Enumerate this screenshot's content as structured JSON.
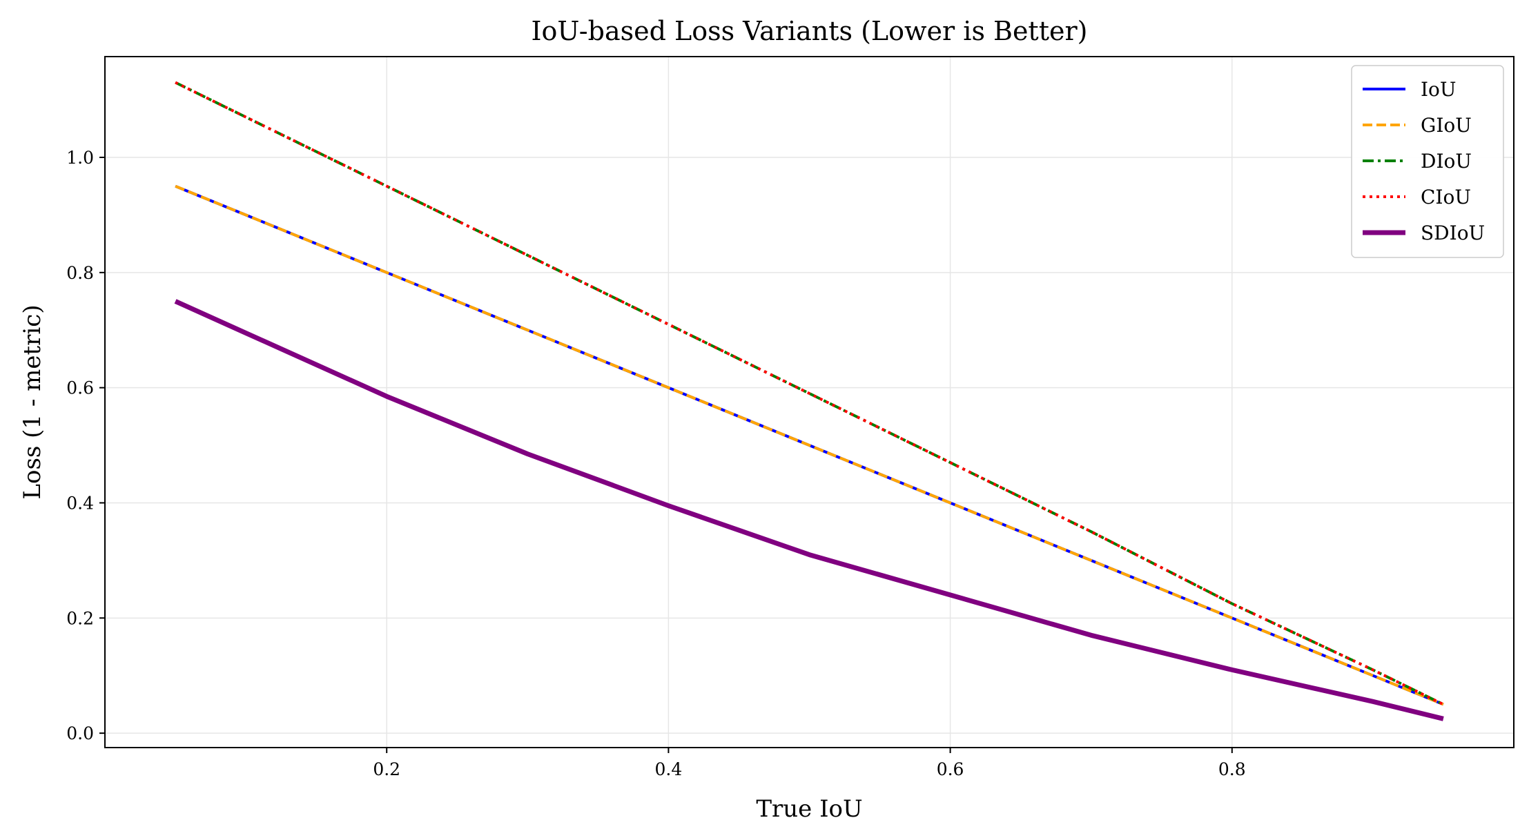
{
  "chart_data": {
    "type": "line",
    "title": "IoU-based Loss Variants (Lower is Better)",
    "xlabel": "True IoU",
    "ylabel": "Loss (1 - metric)",
    "xlim": [
      0.0,
      1.0
    ],
    "ylim": [
      -0.025,
      1.175
    ],
    "xticks": [
      0.2,
      0.4,
      0.6,
      0.8
    ],
    "yticks": [
      0.0,
      0.2,
      0.4,
      0.6,
      0.8,
      1.0
    ],
    "xtick_labels": [
      "0.2",
      "0.4",
      "0.6",
      "0.8"
    ],
    "ytick_labels": [
      "0.0",
      "0.2",
      "0.4",
      "0.6",
      "0.8",
      "1.0"
    ],
    "grid": true,
    "legend_position": "top-right",
    "x": [
      0.05,
      0.1,
      0.2,
      0.3,
      0.4,
      0.5,
      0.6,
      0.7,
      0.8,
      0.9,
      0.95
    ],
    "series": [
      {
        "name": "IoU",
        "color": "#0000ff",
        "style": "solid",
        "values": [
          0.95,
          0.9,
          0.8,
          0.7,
          0.6,
          0.5,
          0.4,
          0.3,
          0.2,
          0.1,
          0.05
        ]
      },
      {
        "name": "GIoU",
        "color": "#ffa500",
        "style": "dashed",
        "values": [
          0.95,
          0.9,
          0.8,
          0.7,
          0.6,
          0.5,
          0.4,
          0.3,
          0.2,
          0.1,
          0.05
        ]
      },
      {
        "name": "DIoU",
        "color": "#008000",
        "style": "dashdot",
        "values": [
          1.13,
          1.07,
          0.95,
          0.83,
          0.71,
          0.59,
          0.47,
          0.35,
          0.225,
          0.11,
          0.05
        ]
      },
      {
        "name": "CIoU",
        "color": "#ff0000",
        "style": "dotted",
        "values": [
          1.13,
          1.07,
          0.95,
          0.83,
          0.71,
          0.59,
          0.47,
          0.35,
          0.225,
          0.11,
          0.05
        ]
      },
      {
        "name": "SDIoU",
        "color": "#800080",
        "style": "solid-thick",
        "values": [
          0.75,
          0.695,
          0.585,
          0.485,
          0.395,
          0.31,
          0.24,
          0.17,
          0.11,
          0.055,
          0.025
        ]
      }
    ]
  }
}
